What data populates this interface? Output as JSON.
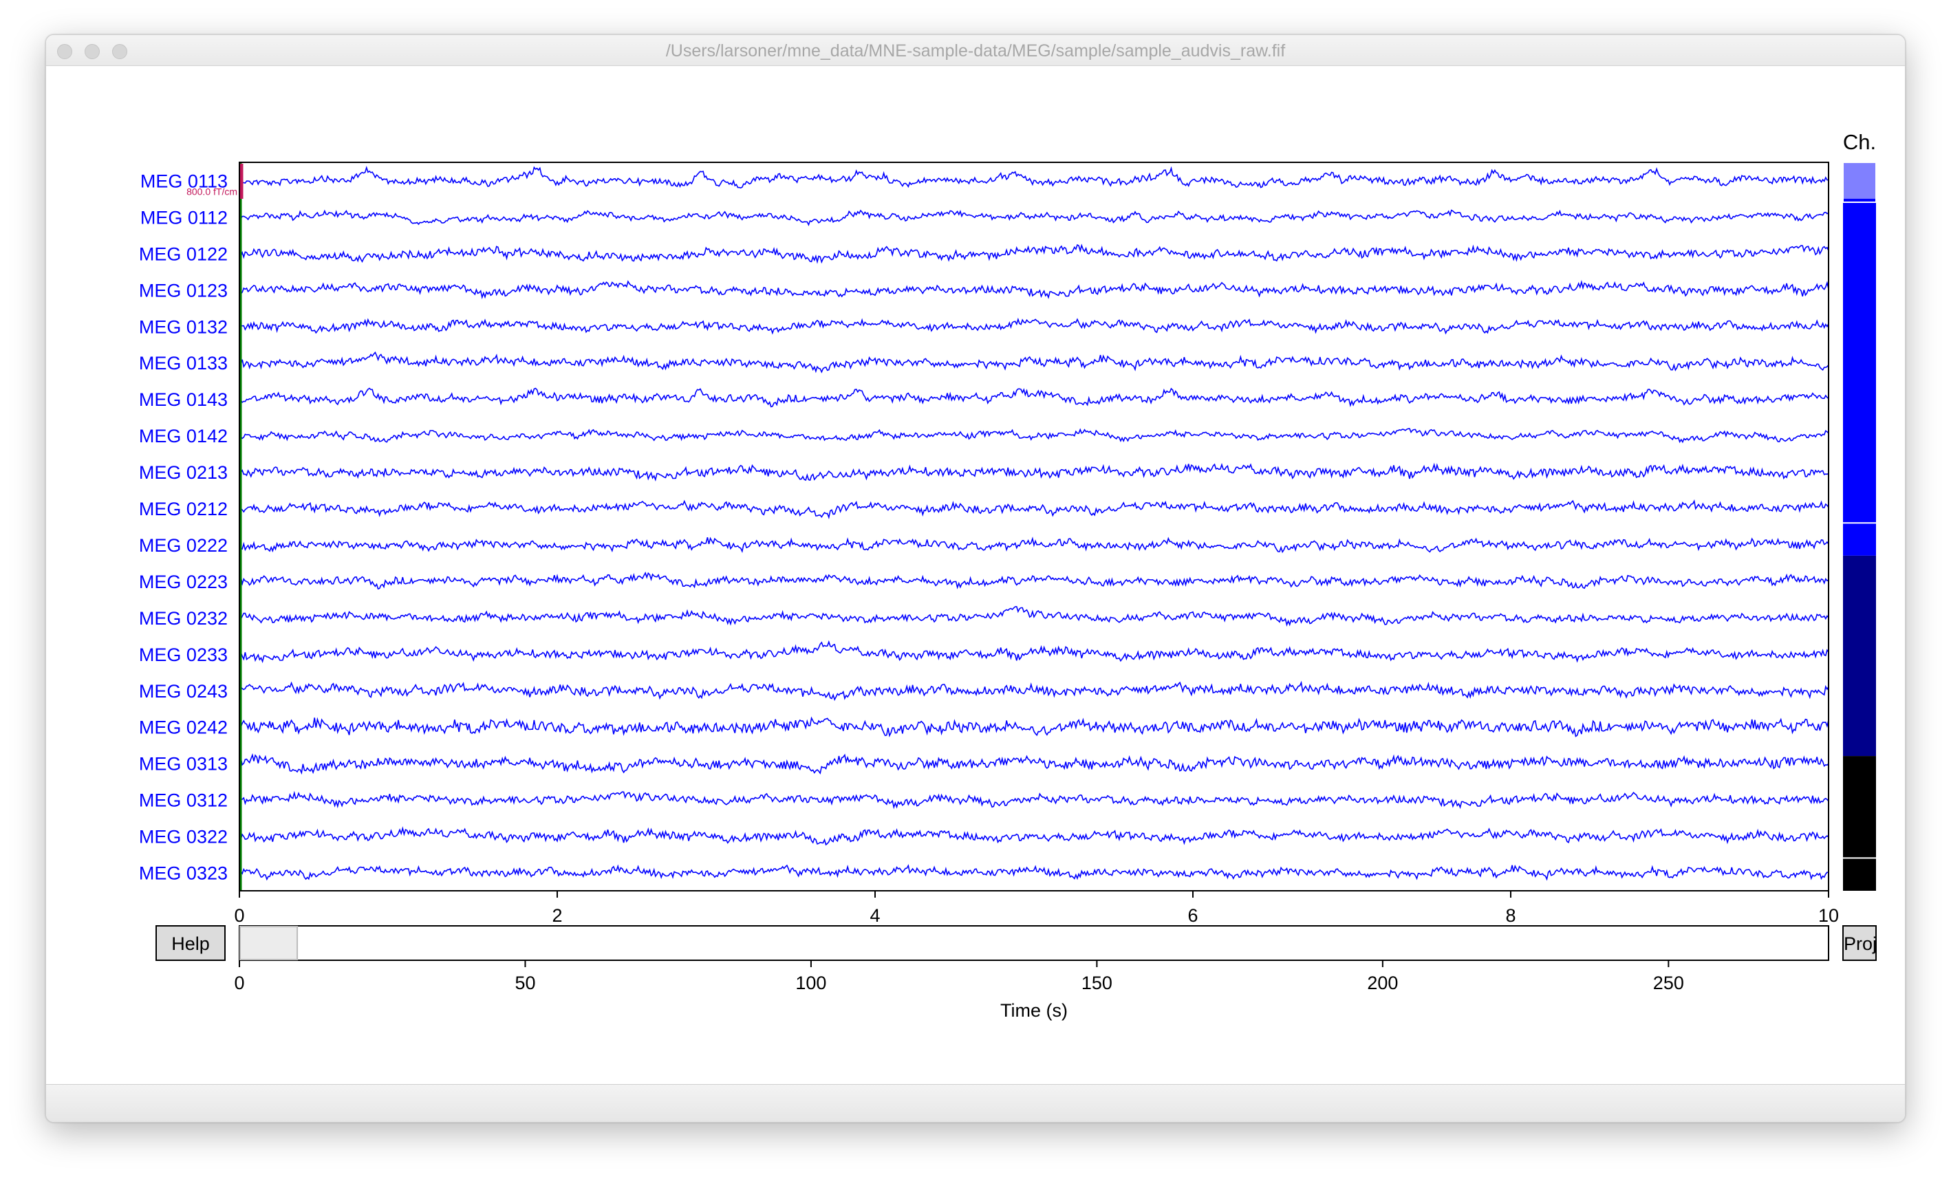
{
  "window": {
    "title": "/Users/larsoner/mne_data/MNE-sample-data/MEG/sample/sample_audvis_raw.fif"
  },
  "chart_data": {
    "type": "line",
    "title": "",
    "xlabel": "",
    "ylabel": "",
    "xlim": [
      0,
      10
    ],
    "x_ticks": [
      "0",
      "2",
      "4",
      "6",
      "8",
      "10"
    ],
    "trace_color": "#0000ff",
    "label_color": "#0000ff",
    "scale_bar_label": "800.0 fT/cm",
    "scale_bar_color": "#c2185b",
    "start_marker_color": "#008000",
    "series": [
      {
        "name": "MEG 0113",
        "noise": 0.45,
        "events": [
          [
            0.8,
            -1.6,
            0.05
          ],
          [
            1.87,
            -1.7,
            0.05
          ],
          [
            2.9,
            -1.5,
            0.05
          ],
          [
            3.9,
            -1.6,
            0.05
          ],
          [
            4.9,
            -1.3,
            0.05
          ],
          [
            5.85,
            -1.3,
            0.05
          ],
          [
            6.85,
            -1.4,
            0.05
          ],
          [
            7.9,
            -1.6,
            0.05
          ],
          [
            8.9,
            -1.3,
            0.05
          ]
        ]
      },
      {
        "name": "MEG 0112",
        "noise": 0.35,
        "events": [
          [
            0.55,
            -0.8,
            0.25
          ],
          [
            2.3,
            -0.6,
            0.2
          ],
          [
            3.7,
            0.5,
            0.2
          ]
        ]
      },
      {
        "name": "MEG 0122",
        "noise": 0.55,
        "events": [
          [
            0.6,
            0.6,
            0.3
          ],
          [
            2.5,
            0.7,
            0.3
          ],
          [
            3.6,
            1.0,
            0.15
          ]
        ]
      },
      {
        "name": "MEG 0123",
        "noise": 0.55,
        "events": [
          [
            0.5,
            -0.5,
            0.2
          ],
          [
            2.3,
            -1.1,
            0.15
          ],
          [
            3.6,
            0.6,
            0.2
          ]
        ]
      },
      {
        "name": "MEG 0132",
        "noise": 0.5,
        "events": [
          [
            0.8,
            -0.8,
            0.05
          ],
          [
            3.9,
            -0.8,
            0.05
          ],
          [
            4.9,
            -0.6,
            0.05
          ]
        ]
      },
      {
        "name": "MEG 0133",
        "noise": 0.55,
        "events": [
          [
            0.9,
            -0.6,
            0.1
          ],
          [
            3.6,
            0.6,
            0.2
          ],
          [
            7.0,
            -0.5,
            0.1
          ]
        ]
      },
      {
        "name": "MEG 0143",
        "noise": 0.5,
        "events": [
          [
            0.8,
            -1.5,
            0.05
          ],
          [
            1.87,
            -1.6,
            0.05
          ],
          [
            2.9,
            -1.4,
            0.05
          ],
          [
            3.9,
            -1.6,
            0.05
          ],
          [
            4.9,
            -1.2,
            0.05
          ],
          [
            5.85,
            -1.2,
            0.05
          ],
          [
            6.85,
            -1.3,
            0.05
          ],
          [
            7.9,
            -1.4,
            0.05
          ],
          [
            8.9,
            -1.5,
            0.05
          ]
        ]
      },
      {
        "name": "MEG 0142",
        "noise": 0.35,
        "events": [
          [
            3.6,
            0.4,
            0.2
          ]
        ]
      },
      {
        "name": "MEG 0213",
        "noise": 0.6,
        "events": [
          [
            3.7,
            1.1,
            0.15
          ],
          [
            3.55,
            0.6,
            0.1
          ]
        ]
      },
      {
        "name": "MEG 0212",
        "noise": 0.55,
        "events": [
          [
            3.65,
            0.9,
            0.15
          ],
          [
            2.3,
            -0.4,
            0.1
          ]
        ]
      },
      {
        "name": "MEG 0222",
        "noise": 0.5,
        "events": [
          [
            4.95,
            -0.7,
            0.1
          ],
          [
            5.2,
            -0.5,
            0.1
          ]
        ]
      },
      {
        "name": "MEG 0223",
        "noise": 0.5,
        "events": [
          [
            3.75,
            -0.5,
            0.1
          ]
        ]
      },
      {
        "name": "MEG 0232",
        "noise": 0.5,
        "events": [
          [
            4.9,
            -0.6,
            0.08
          ]
        ]
      },
      {
        "name": "MEG 0233",
        "noise": 0.55,
        "events": [
          [
            3.7,
            -0.9,
            0.08
          ],
          [
            5.2,
            -0.5,
            0.08
          ]
        ]
      },
      {
        "name": "MEG 0243",
        "noise": 0.65,
        "events": [
          [
            3.6,
            0.6,
            0.2
          ],
          [
            3.8,
            0.8,
            0.1
          ]
        ]
      },
      {
        "name": "MEG 0242",
        "noise": 0.8,
        "events": [
          [
            3.6,
            -0.8,
            0.1
          ],
          [
            3.7,
            -1.0,
            0.08
          ]
        ]
      },
      {
        "name": "MEG 0313",
        "noise": 0.7,
        "events": [
          [
            0.5,
            0.6,
            0.2
          ],
          [
            2.35,
            0.8,
            0.2
          ],
          [
            3.65,
            1.4,
            0.12
          ],
          [
            3.75,
            -0.9,
            0.08
          ]
        ]
      },
      {
        "name": "MEG 0312",
        "noise": 0.55,
        "events": [
          [
            3.6,
            0.5,
            0.1
          ]
        ]
      },
      {
        "name": "MEG 0322",
        "noise": 0.55,
        "events": [
          [
            3.65,
            0.8,
            0.1
          ]
        ]
      },
      {
        "name": "MEG 0323",
        "noise": 0.5,
        "events": [
          [
            2.4,
            -0.4,
            0.1
          ]
        ]
      }
    ],
    "channel_bar": {
      "title": "Ch.",
      "segments": [
        {
          "color": "#8080ff",
          "from": 0,
          "to": 1
        },
        {
          "color": "#0000ff",
          "from": 1,
          "to": 9.9
        },
        {
          "color": "#0000ff",
          "from": 9.9,
          "to": 10.8
        },
        {
          "color": "#00008b",
          "from": 10.8,
          "to": 16.3
        },
        {
          "color": "#000000",
          "from": 16.3,
          "to": 19.1
        },
        {
          "color": "#000000",
          "from": 19.1,
          "to": 20
        }
      ],
      "dividers": [
        9.9,
        19.1
      ],
      "total": 20
    },
    "navigator": {
      "xlim": [
        0,
        278
      ],
      "view_window": [
        0,
        10
      ],
      "x_ticks": [
        "0",
        "50",
        "100",
        "150",
        "200",
        "250"
      ],
      "tick_values": [
        0,
        50,
        100,
        150,
        200,
        250
      ],
      "xlabel": "Time (s)"
    }
  },
  "buttons": {
    "help": "Help",
    "proj": "Proj"
  }
}
